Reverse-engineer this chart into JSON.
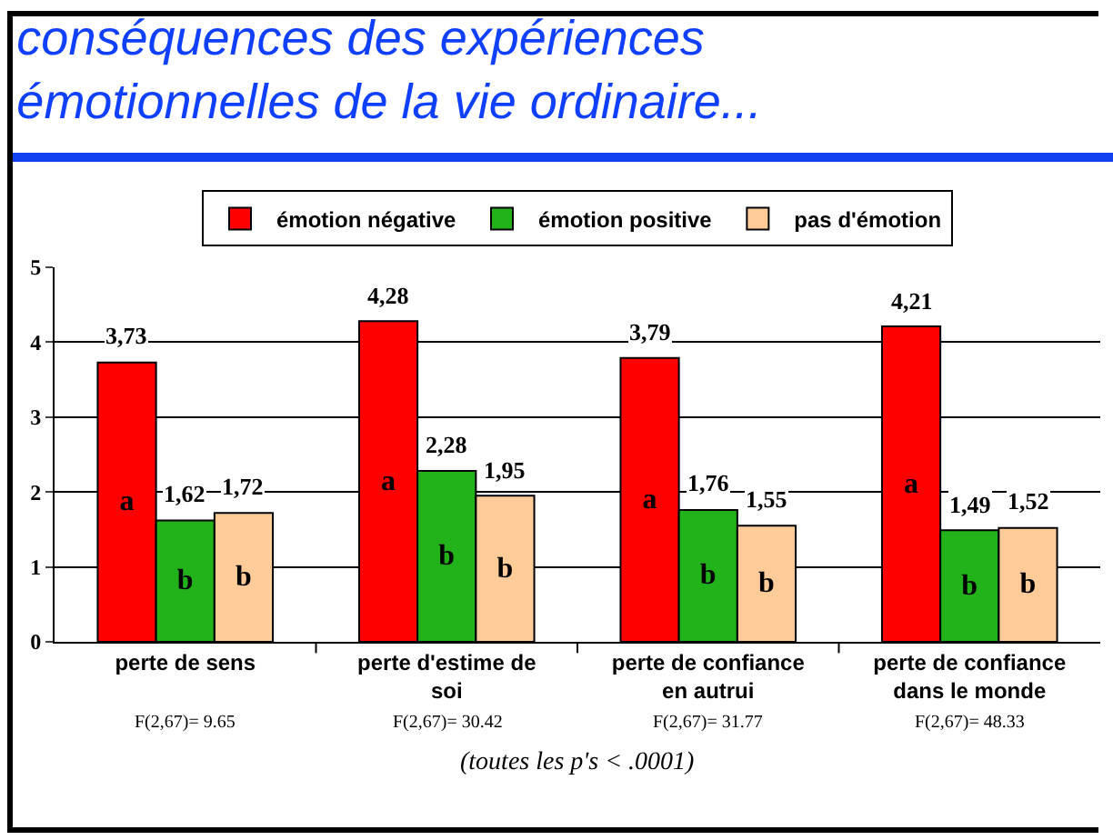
{
  "chart_data": {
    "type": "bar",
    "title": "conséquences des expériences émotionnelles de la vie ordinaire...",
    "categories": [
      "perte de sens",
      "perte d'estime de soi",
      "perte de confiance en autrui",
      "perte de confiance dans le monde"
    ],
    "series": [
      {
        "name": "émotion négative",
        "color": "#ff0000",
        "values": [
          3.73,
          4.28,
          3.79,
          4.21
        ],
        "value_labels": [
          "3,73",
          "4,28",
          "3,79",
          "4,21"
        ]
      },
      {
        "name": "émotion positive",
        "color": "#22b21a",
        "values": [
          1.62,
          2.28,
          1.76,
          1.49
        ],
        "value_labels": [
          "1,62",
          "2,28",
          "1,76",
          "1,49"
        ]
      },
      {
        "name": "pas d'émotion",
        "color": "#ffcc99",
        "values": [
          1.72,
          1.95,
          1.55,
          1.52
        ],
        "value_labels": [
          "1,72",
          "1,95",
          "1,55",
          "1,52"
        ]
      }
    ],
    "ylim": [
      0,
      5
    ],
    "yticks": [
      0,
      1,
      2,
      3,
      4,
      5
    ],
    "grid": "y",
    "legend": "top",
    "annotations": [
      "a",
      "b",
      "b",
      "a",
      "b",
      "b",
      "a",
      "b",
      "b",
      "a",
      "b",
      "b",
      "F(2,67)= 9.65",
      "F(2,67)= 30.42",
      "F(2,67)= 31.77",
      "F(2,67)= 48.33",
      "(toutes les p's < .0001)"
    ]
  }
}
